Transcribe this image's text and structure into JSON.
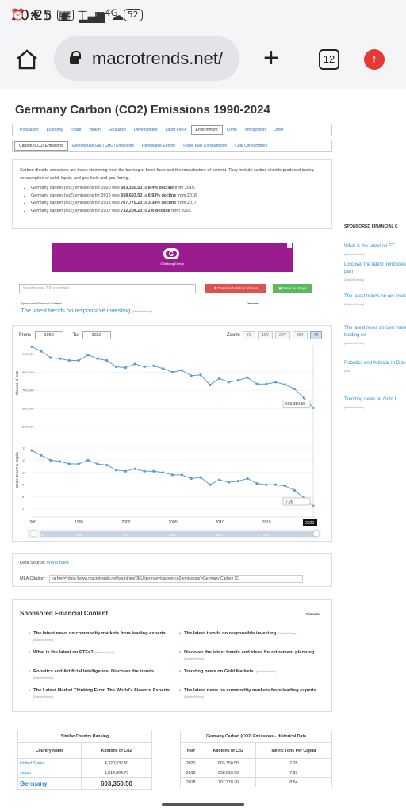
{
  "status": {
    "time": "20:25",
    "lte": "LTE",
    "net": "4G",
    "battery": "52"
  },
  "browser": {
    "url": "macrotrends.net/",
    "tab_count": "12"
  },
  "page": {
    "title": "Germany Carbon (CO2) Emissions 1990-2024",
    "nav1": [
      "Population",
      "Economy",
      "Trade",
      "Health",
      "Education",
      "Development",
      "Labor Force",
      "Environment",
      "Crime",
      "Immigration",
      "Other"
    ],
    "nav1_active": "Environment",
    "nav2": [
      "Carbon (CO2) Emissions",
      "Greenhouse Gas (GHG) Emissions",
      "Renewable Energy",
      "Fossil Fuel Consumption",
      "Coal Consumption"
    ],
    "description": "Carbon dioxide emissions are those stemming from the burning of fossil fuels and the manufacture of cement. They include carbon dioxide produced during consumption of solid, liquid, and gas fuels and gas flaring.",
    "bullets": [
      {
        "pre": "Germany carbon (co2) emissions for 2020 was ",
        "val": "603,350.50",
        "mid": ", a ",
        "chg": "8.4% decline",
        "post": " from 2019."
      },
      {
        "pre": "Germany carbon (co2) emissions for 2019 was ",
        "val": "658,693.50",
        "mid": ", a ",
        "chg": "6.93% decline",
        "post": " from 2018."
      },
      {
        "pre": "Germany carbon (co2) emissions for 2018 was ",
        "val": "707,770.20",
        "mid": ", a ",
        "chg": "3.34% decline",
        "post": " from 2017."
      },
      {
        "pre": "Germany carbon (co2) emissions for 2017 was ",
        "val": "732,204.20",
        "mid": ", a ",
        "chg": "2% decline",
        "post": " from 2016."
      }
    ],
    "ad_text": "Göteborg Energi",
    "search_placeholder": "Search over 200 countries...",
    "download_btn": "Download Historical Data",
    "image_btn": "Save as Image",
    "sponsored_label": "Sponsored Financial Content",
    "sponsored_right": "Dianomi",
    "top_link": "The latest trends on responsible investing",
    "top_link_src": "(MarketViews)",
    "from_label": "From:",
    "from_val": "1990",
    "to_label": "To:",
    "to_val": "2022",
    "zoom_label": "Zoom:",
    "zoom_opts": [
      "5Y",
      "10Y",
      "20Y",
      "30Y",
      "All"
    ],
    "zoom_sel": "All",
    "data_source_label": "Data Source:",
    "data_source_link": "World Bank",
    "mla_label": "MLA Citation:",
    "mla_code": "<a href='https://www.macrotrends.net/countries/DEU/germany/carbon-co2-emissions'>Germany Carbon (C",
    "spon_heading": "Sponsored Financial Content",
    "spon_brand": "Dianomi",
    "spon_items": [
      {
        "t": "The latest news on commodity markets from leading experts",
        "s": "(MarketViews)"
      },
      {
        "t": "The latest trends on responsible investing",
        "s": "(MarketViews)"
      },
      {
        "t": "What is the latest on ETFs?",
        "s": "(MarketViews)"
      },
      {
        "t": "Discover the latest trends and ideas for retirement planning.",
        "s": "(MarketViews)"
      },
      {
        "t": "Robotics and Artificial Intelligence. Discover the trends.",
        "s": "(MarketViews)"
      },
      {
        "t": "Trending news on Gold Markets.",
        "s": "(MarketViews)"
      },
      {
        "t": "The Latest Market Thinking From The World's Finance Experts",
        "s": "(MarketViews)"
      },
      {
        "t": "The latest news on commodity markets from leading experts",
        "s": "(MarketViews)"
      }
    ],
    "rank_table": {
      "caption": "Similar Country Ranking",
      "headers": [
        "Country Name",
        "Kilotons of Co2"
      ],
      "rows": [
        [
          "United States",
          "4,320,532.50"
        ],
        [
          "Japan",
          "1,014,064.70"
        ],
        [
          "Germany",
          "603,350.50"
        ]
      ]
    },
    "hist_table": {
      "caption": "Germany Carbon (CO2) Emissions - Historical Data",
      "headers": [
        "Year",
        "Kilotons of Co2",
        "Metric Tons Per Capita"
      ],
      "rows": [
        [
          "2020",
          "603,350.50",
          "7.26"
        ],
        [
          "2019",
          "658,693.50",
          "7.93"
        ],
        [
          "2018",
          "707,770.20",
          "8.54"
        ]
      ]
    },
    "sidebar": {
      "heading": "SPONSORED FINANCIAL C",
      "items": [
        {
          "t": "What is the latest on ET",
          "s": "(MarketViews)"
        },
        {
          "t": "Discover the latest trend ideas for retirement plan",
          "s": "(MarketViews)"
        },
        {
          "t": "The latest trends on res investing",
          "s": "(MarketViews)"
        },
        {
          "t": "The latest news on com markets from leading ex",
          "s": "(MarketViews)"
        },
        {
          "t": "Robotics and Artificial In Discover the trends.",
          "s": "(Mar"
        },
        {
          "t": "Trending news on Gold I",
          "s": "(MarketViews)"
        }
      ]
    }
  },
  "chart_data": [
    {
      "type": "line",
      "title": "",
      "ylabel": "Kilotons of Co2",
      "ylim": [
        500000,
        950000
      ],
      "yticks": [
        "900,000",
        "800,000",
        "700,000",
        "600,000",
        "500,000"
      ],
      "x": [
        1990,
        1991,
        1992,
        1993,
        1994,
        1995,
        1996,
        1997,
        1998,
        1999,
        2000,
        2001,
        2002,
        2003,
        2004,
        2005,
        2006,
        2007,
        2008,
        2009,
        2010,
        2011,
        2012,
        2013,
        2014,
        2015,
        2016,
        2017,
        2018,
        2019,
        2020
      ],
      "values": [
        940000,
        915000,
        880000,
        875000,
        865000,
        865000,
        895000,
        875000,
        865000,
        830000,
        825000,
        845000,
        830000,
        835000,
        820000,
        800000,
        810000,
        780000,
        785000,
        730000,
        765000,
        745000,
        755000,
        770000,
        735000,
        735000,
        745000,
        732204,
        707770,
        658693,
        603350
      ],
      "last_label": "603,350.50",
      "color": "#5b9bd5"
    },
    {
      "type": "line",
      "title": "",
      "ylabel": "Metric Tons Per Capita",
      "ylim": [
        7,
        12
      ],
      "yticks": [
        "12",
        "11",
        "10",
        "9",
        "8",
        "7"
      ],
      "x": [
        1990,
        1991,
        1992,
        1993,
        1994,
        1995,
        1996,
        1997,
        1998,
        1999,
        2000,
        2001,
        2002,
        2003,
        2004,
        2005,
        2006,
        2007,
        2008,
        2009,
        2010,
        2011,
        2012,
        2013,
        2014,
        2015,
        2016,
        2017,
        2018,
        2019,
        2020
      ],
      "values": [
        11.8,
        11.4,
        11.0,
        10.9,
        10.7,
        10.7,
        11.0,
        10.7,
        10.6,
        10.2,
        10.1,
        10.3,
        10.1,
        10.1,
        10.0,
        9.8,
        9.8,
        9.5,
        9.6,
        9.0,
        9.4,
        9.2,
        9.3,
        9.5,
        9.1,
        9.0,
        9.0,
        8.9,
        8.54,
        7.93,
        7.26
      ],
      "last_label": "7.26",
      "color": "#5b9bd5"
    }
  ],
  "xaxis_labels": [
    "1990",
    "1995",
    "2000",
    "2005",
    "2010",
    "2015"
  ],
  "xaxis_sel": "2020",
  "navigator_labels": [
    "90",
    "1995",
    "2000",
    "2005",
    "2010",
    "2015"
  ]
}
